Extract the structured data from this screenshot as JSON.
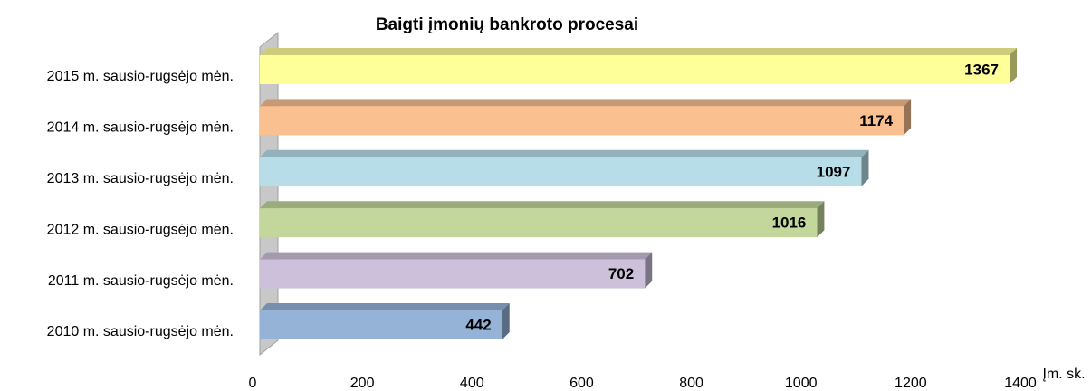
{
  "chart_data": {
    "type": "bar",
    "orientation": "horizontal",
    "title": "Baigti įmonių bankroto procesai",
    "x_label": "Įm. sk.",
    "categories": [
      "2010 m. sausio-rugsėjo mėn.",
      "2011 m. sausio-rugsėjo mėn.",
      "2012 m. sausio-rugsėjo mėn.",
      "2013 m. sausio-rugsėjo mėn.",
      "2014 m. sausio-rugsėjo mėn.",
      "2015 m. sausio-rugsėjo mėn."
    ],
    "values": [
      442,
      702,
      1016,
      1097,
      1174,
      1367
    ],
    "colors": [
      "#95b3d7",
      "#ccc0da",
      "#c3d69b",
      "#b7dde8",
      "#fac090",
      "#ffff99"
    ],
    "xlim": [
      0,
      1400
    ],
    "xticks": [
      0,
      200,
      400,
      600,
      800,
      1000,
      1200,
      1400
    ]
  }
}
